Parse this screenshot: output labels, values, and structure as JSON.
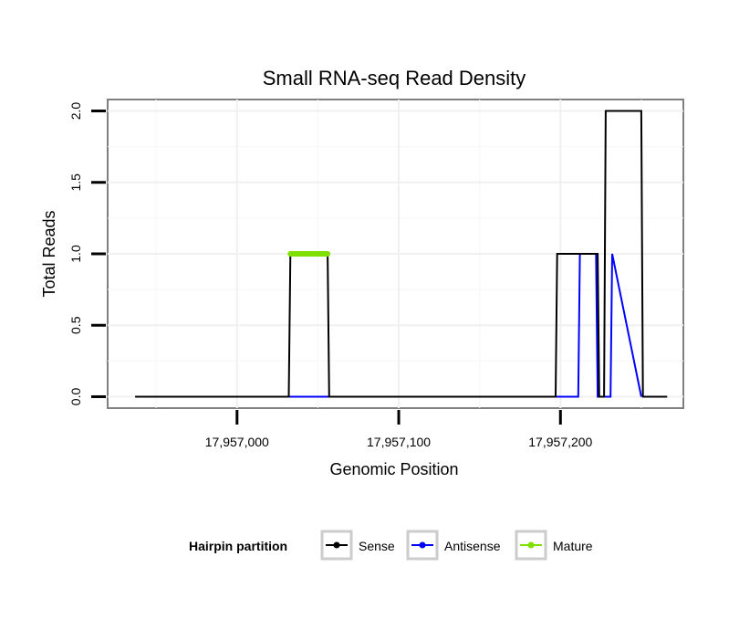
{
  "chart_data": {
    "type": "line",
    "title": "Small RNA-seq Read Density",
    "xlabel": "Genomic Position",
    "ylabel": "Total Reads",
    "xlim": [
      17956920,
      17957276
    ],
    "ylim": [
      -0.08,
      2.08
    ],
    "x_ticks": [
      {
        "value": 17957000,
        "label": "17,957,000"
      },
      {
        "value": 17957100,
        "label": "17,957,100"
      },
      {
        "value": 17957200,
        "label": "17,957,200"
      }
    ],
    "y_ticks": [
      {
        "value": 0.0,
        "label": "0.0"
      },
      {
        "value": 0.5,
        "label": "0.5"
      },
      {
        "value": 1.0,
        "label": "1.0"
      },
      {
        "value": 1.5,
        "label": "1.5"
      },
      {
        "value": 2.0,
        "label": "2.0"
      }
    ],
    "grid": true,
    "legend": {
      "title": "Hairpin partition",
      "position": "bottom"
    },
    "series": [
      {
        "name": "Sense",
        "color": "#000000",
        "x": [
          17956937,
          17957032,
          17957033,
          17957056,
          17957057,
          17957197,
          17957198,
          17957223,
          17957224,
          17957227,
          17957228,
          17957250,
          17957251,
          17957266
        ],
        "y": [
          0,
          0,
          1,
          1,
          0,
          0,
          1,
          1,
          0,
          0,
          2,
          2,
          0,
          0
        ]
      },
      {
        "name": "Antisense",
        "color": "#0000ff",
        "x": [
          17957032,
          17957211,
          17957212,
          17957222,
          17957223,
          17957231,
          17957232,
          17957250
        ],
        "y": [
          0,
          0,
          1,
          1,
          0,
          0,
          1,
          0
        ]
      },
      {
        "name": "Mature",
        "color": "#7fe000",
        "x": [
          17957033,
          17957056
        ],
        "y": [
          1,
          1
        ]
      }
    ]
  }
}
